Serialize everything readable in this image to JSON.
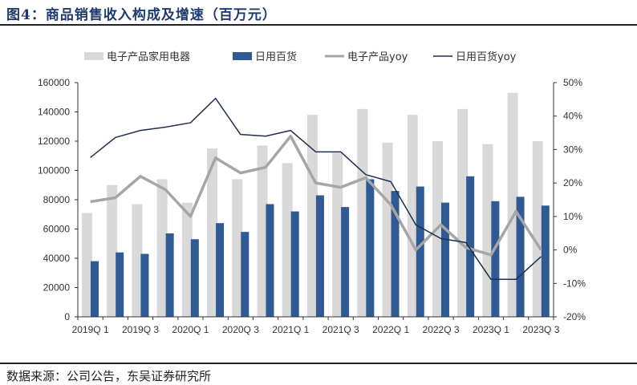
{
  "title": "图4：商品销售收入构成及增速（百万元）",
  "source": "数据来源：公司公告，东吴证券研究所",
  "colors": {
    "electronics_bar": "#d9d9d9",
    "daily_bar": "#2f5a93",
    "electronics_yoy": "#a6a6a6",
    "daily_yoy": "#1f2f4f",
    "title": "#1f3a6e"
  },
  "chart_data": {
    "type": "bar+line",
    "title": "商品销售收入构成及增速（百万元）",
    "x_start": "2019Q1",
    "x_tick_labels": [
      "2019Q 1",
      "2019Q 3",
      "2020Q 1",
      "2020Q 3",
      "2021Q 1",
      "2021Q 3",
      "2022Q 1",
      "2022Q 3",
      "2023Q 1",
      "2023Q 3"
    ],
    "y_left": {
      "min": 0,
      "max": 160000,
      "step": 20000,
      "ticks": [
        "0",
        "20000",
        "40000",
        "60000",
        "80000",
        "100000",
        "120000",
        "140000",
        "160000"
      ]
    },
    "y_right": {
      "min": -20,
      "max": 50,
      "step": 10,
      "ticks": [
        "-20%",
        "-10%",
        "0%",
        "10%",
        "20%",
        "30%",
        "40%",
        "50%"
      ]
    },
    "legend_position": "top",
    "series": [
      {
        "name": "电子产品家用电器",
        "type": "bar",
        "axis": "left",
        "values": [
          71000,
          90000,
          77000,
          94000,
          78000,
          115000,
          94000,
          117000,
          105000,
          138000,
          112000,
          142000,
          119000,
          138000,
          120000,
          142000,
          118000,
          153000,
          120000
        ]
      },
      {
        "name": "日用百货",
        "type": "bar",
        "axis": "left",
        "values": [
          38000,
          44000,
          43000,
          57000,
          53000,
          64000,
          58000,
          77000,
          72000,
          83000,
          75000,
          94000,
          86000,
          89000,
          78000,
          96000,
          79000,
          82000,
          76000
        ]
      },
      {
        "name": "电子产品yoy",
        "type": "line",
        "axis": "right",
        "values": [
          14.4,
          15.6,
          22,
          18,
          10,
          27.5,
          23,
          24.7,
          34,
          20,
          18.7,
          21.6,
          13.5,
          0,
          7.5,
          0.7,
          -1.5,
          11.5,
          0
        ]
      },
      {
        "name": "日用百货yoy",
        "type": "line",
        "axis": "right",
        "values": [
          27.6,
          33.6,
          35.7,
          36.7,
          38,
          45.3,
          34.5,
          34,
          35.7,
          29.3,
          29.3,
          22.5,
          20.4,
          7.5,
          3.4,
          2.2,
          -8.8,
          -8.8,
          -2
        ]
      }
    ]
  }
}
